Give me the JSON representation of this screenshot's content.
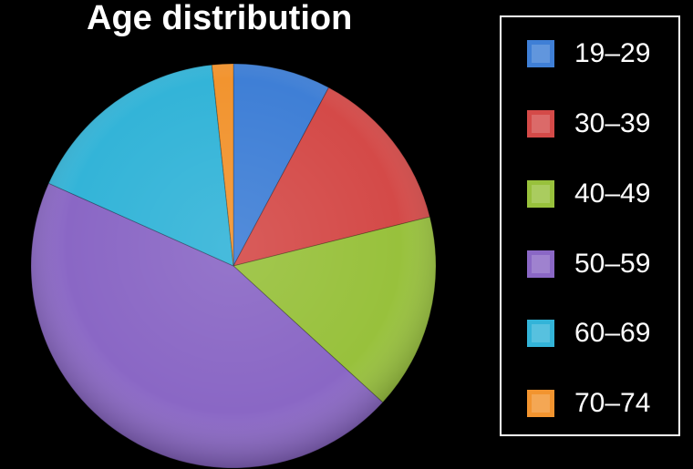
{
  "chart_data": {
    "type": "pie",
    "title": "Age distribution",
    "categories": [
      "19–29",
      "30–39",
      "40–49",
      "50–59",
      "60–69",
      "70–74"
    ],
    "values": [
      7.8,
      13.3,
      15.7,
      44.9,
      16.6,
      1.7
    ],
    "unit": "%",
    "colors": [
      "#3f7fd6",
      "#d44a48",
      "#98c13c",
      "#8a67c5",
      "#33b4d8",
      "#f2942f"
    ],
    "legend": {
      "position": "right"
    },
    "start_angle_deg": 0,
    "direction": "clockwise"
  }
}
